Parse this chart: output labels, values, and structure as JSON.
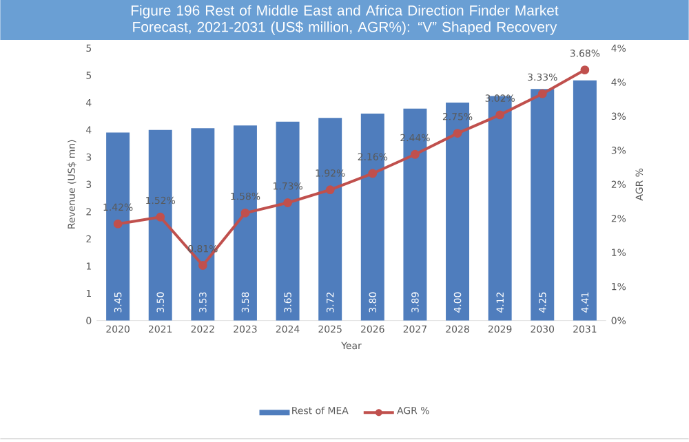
{
  "chart_data": {
    "type": "bar",
    "title": "Figure 196 Rest of Middle East and Africa Direction Finder Market Forecast, 2021-2031 (US$ million, AGR%): “V” Shaped Recovery",
    "xlabel": "Year",
    "ylabel": "Revenue (US$ mn)",
    "y2label": "AGR %",
    "categories": [
      "2020",
      "2021",
      "2022",
      "2023",
      "2024",
      "2025",
      "2026",
      "2027",
      "2028",
      "2029",
      "2030",
      "2031"
    ],
    "series": [
      {
        "name": "Rest of MEA",
        "color": "#4f7dbd",
        "values": [
          3.45,
          3.5,
          3.53,
          3.58,
          3.65,
          3.72,
          3.8,
          3.89,
          4.0,
          4.12,
          4.25,
          4.41
        ],
        "value_labels": [
          "3.45",
          "3.50",
          "3.53",
          "3.58",
          "3.65",
          "3.72",
          "3.80",
          "3.89",
          "4.00",
          "4.12",
          "4.25",
          "4.41"
        ]
      },
      {
        "name": "AGR %",
        "type": "line",
        "axis": "y2",
        "marker": "circle",
        "color": "#c0504d",
        "values": [
          1.42,
          1.52,
          0.81,
          1.58,
          1.73,
          1.92,
          2.16,
          2.44,
          2.75,
          3.02,
          3.33,
          3.68
        ],
        "value_labels": [
          "1.42%",
          "1.52%",
          "0.81%",
          "1.58%",
          "1.73%",
          "1.92%",
          "2.16%",
          "2.44%",
          "2.75%",
          "3.02%",
          "3.33%",
          "3.68%"
        ]
      }
    ],
    "ylim": [
      0,
      5
    ],
    "yticks": [
      0,
      {
        "value": 0.5,
        "label": "1"
      },
      {
        "value": 1,
        "label": "1"
      },
      {
        "value": 1.5,
        "label": "2"
      },
      {
        "value": 2,
        "label": "2"
      },
      {
        "value": 2.5,
        "label": "3"
      },
      {
        "value": 3,
        "label": "3"
      },
      {
        "value": 3.5,
        "label": "4"
      },
      {
        "value": 4,
        "label": "4"
      },
      {
        "value": 4.5,
        "label": "5"
      },
      {
        "value": 5,
        "label": "5"
      }
    ],
    "y2lim": [
      0,
      4
    ],
    "y2ticks": [
      {
        "value": 0,
        "label": "0%"
      },
      {
        "value": 0.5,
        "label": "1%"
      },
      {
        "value": 1,
        "label": "1%"
      },
      {
        "value": 1.5,
        "label": "2%"
      },
      {
        "value": 2,
        "label": "2%"
      },
      {
        "value": 2.5,
        "label": "3%"
      },
      {
        "value": 3,
        "label": "3%"
      },
      {
        "value": 3.5,
        "label": "4%"
      },
      {
        "value": 4,
        "label": "4%"
      }
    ],
    "legend": "bottom"
  }
}
